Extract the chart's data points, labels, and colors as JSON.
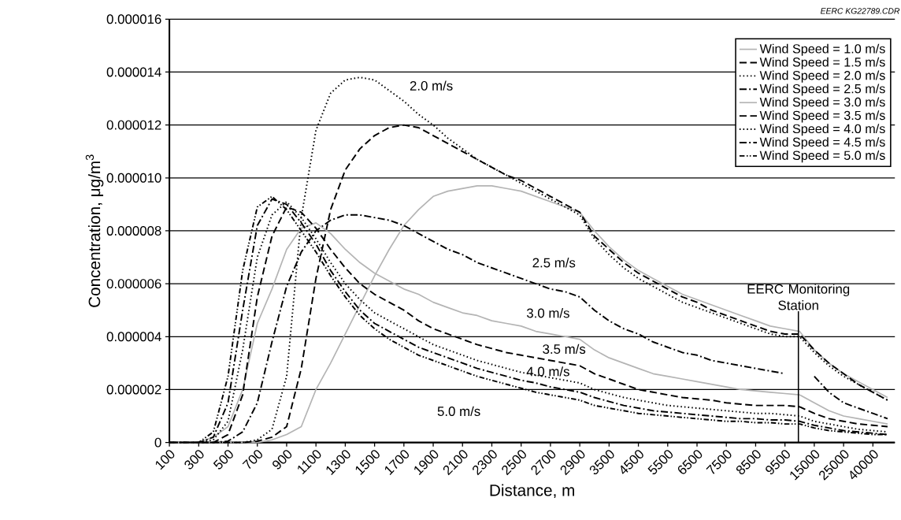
{
  "chart_data": {
    "type": "line",
    "xlabel": "Distance, m",
    "ylabel": "Concentration, μg/m$^{3}$",
    "categories": [
      "100",
      null,
      "300",
      null,
      "500",
      null,
      "700",
      null,
      "900",
      null,
      "1100",
      null,
      "1300",
      null,
      "1500",
      null,
      "1700",
      null,
      "1900",
      null,
      "2100",
      null,
      "2300",
      null,
      "2500",
      null,
      "2700",
      null,
      "2900",
      null,
      "3500",
      null,
      "4500",
      null,
      "5500",
      null,
      "6500",
      null,
      "7500",
      null,
      "8500",
      null,
      "9500",
      null,
      "15000",
      null,
      "25000",
      null,
      "40000",
      null
    ],
    "ylim": [
      0,
      1.6e-05
    ],
    "yticks": [
      0,
      {
        "value": 2e-06,
        "label": "0.000002"
      },
      {
        "value": 4e-06,
        "label": "0.000004"
      },
      {
        "value": 6e-06,
        "label": "0.000006"
      },
      {
        "value": 8e-06,
        "label": "0.000008"
      },
      {
        "value": 1e-05,
        "label": "0.000010"
      },
      {
        "value": 1.2e-05,
        "label": "0.000012"
      },
      {
        "value": 1.4e-05,
        "label": "0.000014"
      },
      {
        "value": 1.6e-05,
        "label": "0.000016"
      }
    ],
    "grid": "y",
    "legend": "top right",
    "series": [
      {
        "name": "Wind Speed = 1.0 m/s",
        "color": "#b4b4b4",
        "line_style": "solid",
        "values": [
          0,
          0,
          0,
          0,
          0,
          0,
          0,
          1e-07,
          3e-07,
          6e-07,
          2e-06,
          3e-06,
          4.1e-06,
          5.2e-06,
          6.3e-06,
          7.3e-06,
          8.2e-06,
          8.8e-06,
          9.3e-06,
          9.5e-06,
          9.6e-06,
          9.7e-06,
          9.7e-06,
          9.6e-06,
          9.5e-06,
          9.3e-06,
          9.1e-06,
          8.9e-06,
          8.7e-06,
          8e-06,
          7.4e-06,
          6.9e-06,
          6.5e-06,
          6.2e-06,
          5.9e-06,
          5.6e-06,
          5.4e-06,
          5.2e-06,
          5e-06,
          4.8e-06,
          4.6e-06,
          4.4e-06,
          4.3e-06,
          4.2e-06,
          3.5e-06,
          3e-06,
          2.6e-06,
          2.3e-06,
          2e-06,
          1.7e-06
        ]
      },
      {
        "name": "Wind Speed = 1.5 m/s",
        "color": "#000000",
        "line_style": "dashed",
        "values": [
          0,
          0,
          0,
          0,
          0,
          0,
          5e-08,
          2e-07,
          6e-07,
          2.8e-06,
          6.2e-06,
          8.8e-06,
          1.03e-05,
          1.11e-05,
          1.16e-05,
          1.19e-05,
          1.2e-05,
          1.19e-05,
          1.16e-05,
          1.13e-05,
          1.1e-05,
          1.07e-05,
          1.04e-05,
          1.01e-05,
          9.9e-06,
          9.6e-06,
          9.3e-06,
          9e-06,
          8.7e-06,
          7.8e-06,
          7.3e-06,
          6.8e-06,
          6.4e-06,
          6.1e-06,
          5.8e-06,
          5.5e-06,
          5.3e-06,
          5e-06,
          4.8e-06,
          4.6e-06,
          4.4e-06,
          4.2e-06,
          4.1e-06,
          4.1e-06,
          3.5e-06,
          3e-06,
          2.6e-06,
          2.2e-06,
          1.9e-06,
          1.6e-06
        ]
      },
      {
        "name": "Wind Speed = 2.0 m/s",
        "color": "#000000",
        "line_style": "dotted",
        "values": [
          0,
          0,
          0,
          0,
          0,
          0,
          1e-07,
          5e-07,
          2.5e-06,
          8.5e-06,
          1.18e-05,
          1.32e-05,
          1.37e-05,
          1.38e-05,
          1.37e-05,
          1.33e-05,
          1.29e-05,
          1.24e-05,
          1.2e-05,
          1.15e-05,
          1.11e-05,
          1.07e-05,
          1.04e-05,
          1.01e-05,
          9.8e-06,
          9.5e-06,
          9.2e-06,
          8.9e-06,
          8.6e-06,
          7.7e-06,
          7.1e-06,
          6.6e-06,
          6.2e-06,
          5.9e-06,
          5.6e-06,
          5.3e-06,
          5.1e-06,
          4.9e-06,
          4.7e-06,
          4.5e-06,
          4.3e-06,
          4.1e-06,
          4e-06,
          4e-06,
          3.4e-06,
          2.9e-06,
          2.5e-06,
          2.2e-06,
          1.9e-06,
          1.6e-06
        ]
      },
      {
        "name": "Wind Speed = 2.5 m/s",
        "color": "#000000",
        "line_style": "dashdot",
        "values": [
          0,
          0,
          0,
          0,
          5e-08,
          4e-07,
          1.5e-06,
          3.8e-06,
          5.9e-06,
          7.2e-06,
          8e-06,
          8.4e-06,
          8.6e-06,
          8.6e-06,
          8.5e-06,
          8.4e-06,
          8.2e-06,
          7.9e-06,
          7.6e-06,
          7.3e-06,
          7.1e-06,
          6.8e-06,
          6.6e-06,
          6.4e-06,
          6.2e-06,
          6e-06,
          5.8e-06,
          5.7e-06,
          5.5e-06,
          5e-06,
          4.6e-06,
          4.3e-06,
          4.1e-06,
          3.8e-06,
          3.6e-06,
          3.4e-06,
          3.3e-06,
          3.1e-06,
          3e-06,
          2.9e-06,
          2.8e-06,
          2.7e-06,
          2.6e-06,
          null,
          2.5e-06,
          1.9e-06,
          1.5e-06,
          1.3e-06,
          1.1e-06,
          9e-07
        ]
      },
      {
        "name": "Wind Speed = 3.0 m/s",
        "color": "#b4b4b4",
        "line_style": "solid",
        "values": [
          0,
          0,
          0,
          2e-07,
          6e-07,
          2e-06,
          4.5e-06,
          5.8e-06,
          7.3e-06,
          8.1e-06,
          8.3e-06,
          7.9e-06,
          7.3e-06,
          6.8e-06,
          6.4e-06,
          6.1e-06,
          5.8e-06,
          5.6e-06,
          5.3e-06,
          5.1e-06,
          4.9e-06,
          4.8e-06,
          4.6e-06,
          4.5e-06,
          4.4e-06,
          4.2e-06,
          4.1e-06,
          4e-06,
          3.9e-06,
          3.5e-06,
          3.2e-06,
          3e-06,
          2.8e-06,
          2.6e-06,
          2.5e-06,
          2.4e-06,
          2.3e-06,
          2.2e-06,
          2.1e-06,
          2e-06,
          1.95e-06,
          1.9e-06,
          1.85e-06,
          1.8e-06,
          1.5e-06,
          1.2e-06,
          1e-06,
          9e-07,
          8e-07,
          7e-07
        ]
      },
      {
        "name": "Wind Speed = 3.5 m/s",
        "color": "#000000",
        "line_style": "dashed",
        "values": [
          0,
          0,
          0,
          0,
          3e-07,
          1.8e-06,
          5.5e-06,
          7.8e-06,
          8.9e-06,
          8.7e-06,
          8.1e-06,
          7.3e-06,
          6.6e-06,
          6e-06,
          5.6e-06,
          5.3e-06,
          5e-06,
          4.6e-06,
          4.3e-06,
          4.1e-06,
          3.9e-06,
          3.7e-06,
          3.55e-06,
          3.4e-06,
          3.3e-06,
          3.2e-06,
          3.1e-06,
          3e-06,
          2.9e-06,
          2.6e-06,
          2.4e-06,
          2.2e-06,
          2e-06,
          1.9e-06,
          1.8e-06,
          1.7e-06,
          1.65e-06,
          1.6e-06,
          1.5e-06,
          1.45e-06,
          1.4e-06,
          1.4e-06,
          1.4e-06,
          1.35e-06,
          1.1e-06,
          9e-07,
          8e-07,
          7e-07,
          6.5e-07,
          6e-07
        ]
      },
      {
        "name": "Wind Speed = 4.0 m/s",
        "color": "#000000",
        "line_style": "dotted",
        "values": [
          0,
          0,
          0,
          1e-07,
          8e-07,
          3.5e-06,
          7e-06,
          8.6e-06,
          9.1e-06,
          8.5e-06,
          7.7e-06,
          6.8e-06,
          6e-06,
          5.4e-06,
          4.9e-06,
          4.6e-06,
          4.3e-06,
          4e-06,
          3.7e-06,
          3.5e-06,
          3.3e-06,
          3.1e-06,
          2.95e-06,
          2.8e-06,
          2.65e-06,
          2.55e-06,
          2.45e-06,
          2.35e-06,
          2.25e-06,
          2e-06,
          1.85e-06,
          1.7e-06,
          1.6e-06,
          1.5e-06,
          1.4e-06,
          1.35e-06,
          1.3e-06,
          1.25e-06,
          1.2e-06,
          1.15e-06,
          1.1e-06,
          1.1e-06,
          1.05e-06,
          1e-06,
          8e-07,
          7e-07,
          6e-07,
          5e-07,
          4.5e-07,
          4e-07
        ]
      },
      {
        "name": "Wind Speed = 4.5 m/s",
        "color": "#000000",
        "line_style": "dashdot",
        "values": [
          0,
          0,
          0,
          2e-07,
          1.5e-06,
          5e-06,
          8.2e-06,
          9.2e-06,
          9e-06,
          8.3e-06,
          7.5e-06,
          6.5e-06,
          5.7e-06,
          5e-06,
          4.5e-06,
          4.2e-06,
          3.9e-06,
          3.6e-06,
          3.4e-06,
          3.2e-06,
          3e-06,
          2.8e-06,
          2.65e-06,
          2.5e-06,
          2.35e-06,
          2.25e-06,
          2.1e-06,
          2e-06,
          1.9e-06,
          1.7e-06,
          1.55e-06,
          1.4e-06,
          1.3e-06,
          1.2e-06,
          1.15e-06,
          1.1e-06,
          1.05e-06,
          1e-06,
          9.5e-07,
          9e-07,
          9e-07,
          8.5e-07,
          8.5e-07,
          8e-07,
          6.5e-07,
          5.5e-07,
          4.5e-07,
          4e-07,
          3.5e-07,
          3e-07
        ]
      },
      {
        "name": "Wind Speed = 5.0 m/s",
        "color": "#000000",
        "line_style": "dashdotdot",
        "values": [
          0,
          0,
          0,
          4e-07,
          2.5e-06,
          6.5e-06,
          8.9e-06,
          9.3e-06,
          8.8e-06,
          8e-06,
          7.2e-06,
          6.3e-06,
          5.5e-06,
          4.8e-06,
          4.3e-06,
          3.9e-06,
          3.6e-06,
          3.3e-06,
          3.1e-06,
          2.9e-06,
          2.7e-06,
          2.5e-06,
          2.35e-06,
          2.2e-06,
          2.05e-06,
          1.9e-06,
          1.8e-06,
          1.7e-06,
          1.6e-06,
          1.4e-06,
          1.3e-06,
          1.2e-06,
          1.1e-06,
          1.05e-06,
          1e-06,
          9.5e-07,
          9e-07,
          8.5e-07,
          8e-07,
          8e-07,
          7.5e-07,
          7.5e-07,
          7e-07,
          7e-07,
          5.5e-07,
          4.5e-07,
          4e-07,
          3.5e-07,
          3e-07,
          3e-07
        ]
      }
    ],
    "annotations": [
      "2.0 m/s",
      "2.5 m/s",
      "3.0 m/s",
      "3.5 m/s",
      "4.0 m/s",
      "5.0 m/s",
      "EERC KG22789.CDR",
      "EERC Monitoring Station"
    ]
  }
}
